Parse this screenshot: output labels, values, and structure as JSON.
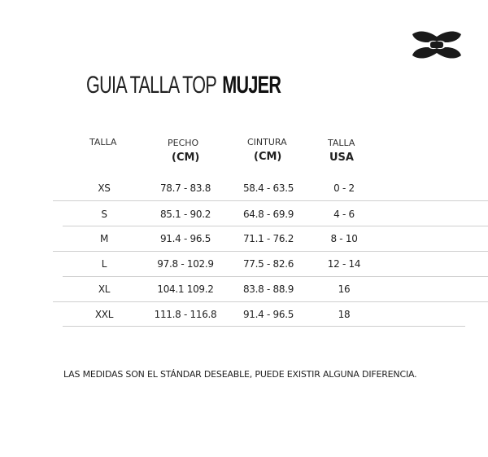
{
  "brand": {
    "logo": "under-armour-logo",
    "color": "#1a1a1a"
  },
  "title": {
    "light": "GUIA TALLA TOP",
    "bold": "MUJER"
  },
  "table": {
    "headers": [
      {
        "label": "TALLA",
        "unit": ""
      },
      {
        "label": "PECHO",
        "unit": "(CM)"
      },
      {
        "label": "CINTURA",
        "unit": "(CM)"
      },
      {
        "label": "TALLA",
        "unit": "USA"
      }
    ],
    "rows": [
      [
        "XS",
        "78.7 - 83.8",
        "58.4 - 63.5",
        "0 - 2"
      ],
      [
        "S",
        "85.1 - 90.2",
        "64.8 - 69.9",
        "4 - 6"
      ],
      [
        "M",
        "91.4 - 96.5",
        "71.1 - 76.2",
        "8 - 10"
      ],
      [
        "L",
        "97.8 - 102.9",
        "77.5 - 82.6",
        "12 - 14"
      ],
      [
        "XL",
        "104.1 109.2",
        "83.8 - 88.9",
        "16"
      ],
      [
        "XXL",
        "111.8 - 116.8",
        "91.4 - 96.5",
        "18"
      ]
    ]
  },
  "note": "LAS MEDIDAS SON EL STÁNDAR DESEABLE, PUEDE EXISTIR ALGUNA DIFERENCIA."
}
